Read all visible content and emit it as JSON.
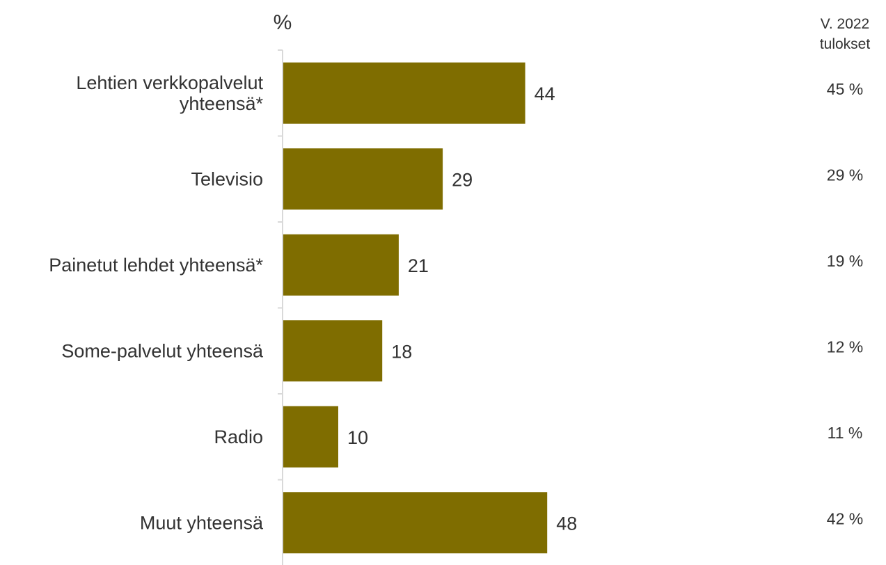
{
  "chart_data": {
    "type": "bar",
    "orientation": "horizontal",
    "unit_label": "%",
    "categories": [
      [
        "Lehtien verkkopalvelut",
        "yhteensä*"
      ],
      [
        "Televisio"
      ],
      [
        "Painetut lehdet yhteensä*"
      ],
      [
        "Some-palvelut yhteensä"
      ],
      [
        "Radio"
      ],
      [
        "Muut yhteensä"
      ]
    ],
    "values": [
      44,
      29,
      21,
      18,
      10,
      48
    ],
    "bar_color": "#7f6d00",
    "xlim": [
      0,
      100
    ],
    "grid": false,
    "previous": {
      "header": [
        "V. 2022",
        "tulokset"
      ],
      "values": [
        "45 %",
        "29 %",
        "19 %",
        "12 %",
        "11 %",
        "42 %"
      ]
    }
  }
}
